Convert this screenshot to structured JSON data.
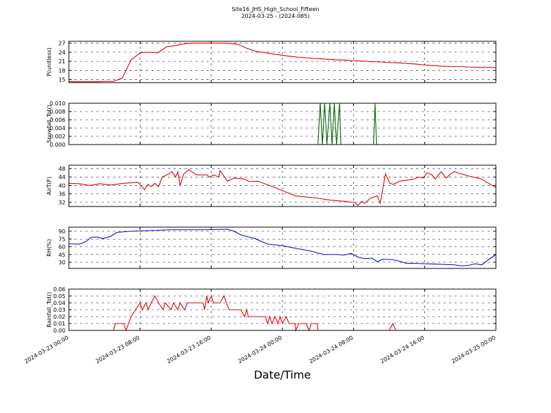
{
  "title": "Site16_JHS_High_School_Fifteen",
  "subtitle": "2024-03-25 - (2024-085)",
  "xlabel": "Date/Time",
  "chart_data": [
    {
      "type": "line",
      "ylabel": "P(unitless)",
      "color": "#e00000",
      "grid": true,
      "xlim": [
        "2024-03-23 00:00",
        "2024-03-25 00:00"
      ],
      "xticks": [
        "2024-03-23 00:00",
        "2024-03-23 08:00",
        "2024-03-23 16:00",
        "2024-03-24 00:00",
        "2024-03-24 08:00",
        "2024-03-24 16:00",
        "2024-03-25 00:00"
      ],
      "ylim": [
        14,
        27.6
      ],
      "yticks": [
        15,
        18,
        21,
        24,
        27
      ],
      "x": [
        "2024-03-23 00:00",
        "2024-03-23 01:00",
        "2024-03-23 02:00",
        "2024-03-23 03:00",
        "2024-03-23 04:00",
        "2024-03-23 05:00",
        "2024-03-23 06:00",
        "2024-03-23 07:00",
        "2024-03-23 08:00",
        "2024-03-23 09:00",
        "2024-03-23 10:00",
        "2024-03-23 11:00",
        "2024-03-23 12:00",
        "2024-03-23 13:00",
        "2024-03-23 14:00",
        "2024-03-23 15:00",
        "2024-03-23 16:00",
        "2024-03-23 17:00",
        "2024-03-23 18:00",
        "2024-03-23 19:00",
        "2024-03-23 20:00",
        "2024-03-23 21:00",
        "2024-03-23 22:00",
        "2024-03-23 23:00",
        "2024-03-24 00:00",
        "2024-03-24 01:00",
        "2024-03-24 02:00",
        "2024-03-24 03:00",
        "2024-03-24 04:00",
        "2024-03-24 05:00",
        "2024-03-24 06:00",
        "2024-03-24 07:00",
        "2024-03-24 08:00",
        "2024-03-24 09:00",
        "2024-03-24 10:00",
        "2024-03-24 11:00",
        "2024-03-24 12:00",
        "2024-03-24 13:00",
        "2024-03-24 14:00",
        "2024-03-24 15:00",
        "2024-03-24 16:00",
        "2024-03-24 17:00",
        "2024-03-24 18:00",
        "2024-03-24 19:00",
        "2024-03-24 20:00",
        "2024-03-24 21:00",
        "2024-03-24 22:00",
        "2024-03-24 23:00",
        "2024-03-25 00:00"
      ],
      "values": [
        14.3,
        14.3,
        14.3,
        14.3,
        14.4,
        14.4,
        15.5,
        21.5,
        23.8,
        24,
        23.8,
        25.8,
        26.2,
        26.8,
        27,
        27,
        27,
        27,
        27,
        26.6,
        25.3,
        24.3,
        23.9,
        23.4,
        23,
        22.6,
        22.3,
        22.1,
        21.9,
        21.7,
        21.5,
        21.4,
        21.2,
        21.1,
        20.9,
        20.8,
        20.6,
        20.5,
        20.3,
        20.1,
        19.8,
        19.6,
        19.4,
        19.3,
        19.3,
        19.1,
        19,
        19,
        18.9
      ]
    },
    {
      "type": "line",
      "ylabel": "Snowfall_Tot()",
      "color": "#006400",
      "grid": true,
      "xlim": [
        "2024-03-23 00:00",
        "2024-03-25 00:00"
      ],
      "xticks": [
        "2024-03-23 00:00",
        "2024-03-23 08:00",
        "2024-03-23 16:00",
        "2024-03-24 00:00",
        "2024-03-24 08:00",
        "2024-03-24 16:00",
        "2024-03-25 00:00"
      ],
      "ylim": [
        0,
        0.01
      ],
      "yticks": [
        {
          "value": 0,
          "label": "0.000"
        },
        0.002,
        0.004,
        0.006,
        0.008,
        {
          "value": 0.01,
          "label": "0.010"
        }
      ],
      "x": [
        "2024-03-23 00:00",
        "2024-03-24 04:00",
        "2024-03-24 04:15",
        "2024-03-24 04:30",
        "2024-03-24 04:45",
        "2024-03-24 05:00",
        "2024-03-24 05:20",
        "2024-03-24 05:35",
        "2024-03-24 05:50",
        "2024-03-24 06:05",
        "2024-03-24 06:25",
        "2024-03-24 06:35",
        "2024-03-24 10:15",
        "2024-03-24 10:25",
        "2024-03-24 10:35",
        "2024-03-25 00:00"
      ],
      "values": [
        0,
        0,
        0.01,
        0,
        0.01,
        0,
        0.01,
        0,
        0.01,
        0,
        0.01,
        0,
        0,
        0.01,
        0,
        0
      ]
    },
    {
      "type": "line",
      "ylabel": "AirT(F)",
      "color": "#e00000",
      "grid": true,
      "xlim": [
        "2024-03-23 00:00",
        "2024-03-25 00:00"
      ],
      "xticks": [
        "2024-03-23 00:00",
        "2024-03-23 08:00",
        "2024-03-23 16:00",
        "2024-03-24 00:00",
        "2024-03-24 08:00",
        "2024-03-24 16:00",
        "2024-03-25 00:00"
      ],
      "ylim": [
        30,
        49.6
      ],
      "yticks": [
        32,
        36,
        40,
        44,
        48
      ],
      "x": [
        "2024-03-23 00:00",
        "2024-03-23 01:10",
        "2024-03-23 02:20",
        "2024-03-23 03:30",
        "2024-03-23 04:40",
        "2024-03-23 06:10",
        "2024-03-23 07:45",
        "2024-03-23 08:30",
        "2024-03-23 08:55",
        "2024-03-23 09:15",
        "2024-03-23 09:40",
        "2024-03-23 10:05",
        "2024-03-23 10:30",
        "2024-03-23 11:15",
        "2024-03-23 11:35",
        "2024-03-23 12:00",
        "2024-03-23 12:15",
        "2024-03-23 12:30",
        "2024-03-23 12:55",
        "2024-03-23 13:30",
        "2024-03-23 14:20",
        "2024-03-23 15:30",
        "2024-03-23 15:50",
        "2024-03-23 16:15",
        "2024-03-23 16:50",
        "2024-03-23 17:00",
        "2024-03-23 17:50",
        "2024-03-23 18:35",
        "2024-03-23 19:45",
        "2024-03-23 20:15",
        "2024-03-23 21:15",
        "2024-03-23 22:50",
        "2024-03-24 00:00",
        "2024-03-24 01:30",
        "2024-03-24 03:55",
        "2024-03-24 05:25",
        "2024-03-24 06:55",
        "2024-03-24 07:45",
        "2024-03-24 08:05",
        "2024-03-24 08:30",
        "2024-03-24 08:55",
        "2024-03-24 09:15",
        "2024-03-24 09:55",
        "2024-03-24 10:40",
        "2024-03-24 11:00",
        "2024-03-24 11:35",
        "2024-03-24 12:05",
        "2024-03-24 12:30",
        "2024-03-24 13:10",
        "2024-03-24 14:45",
        "2024-03-24 15:20",
        "2024-03-24 15:50",
        "2024-03-24 16:15",
        "2024-03-24 16:50",
        "2024-03-24 17:10",
        "2024-03-24 17:50",
        "2024-03-24 18:25",
        "2024-03-24 18:55",
        "2024-03-24 19:20",
        "2024-03-24 20:55",
        "2024-03-24 22:25",
        "2024-03-24 23:10",
        "2024-03-25 00:00"
      ],
      "values": [
        41,
        40.8,
        40,
        40.8,
        40.2,
        41,
        41.5,
        38,
        40.5,
        39.5,
        41,
        39.5,
        44,
        45.5,
        46.5,
        44,
        46.5,
        40,
        45.5,
        47.5,
        45,
        45,
        44,
        45,
        44,
        47,
        42,
        43.5,
        43,
        41.8,
        42,
        39.5,
        37.5,
        35,
        34,
        33,
        32.5,
        32,
        32,
        30.5,
        32.5,
        31.5,
        34,
        35,
        31.5,
        45.5,
        41,
        40.5,
        42,
        43,
        44,
        43.5,
        46,
        45,
        43,
        46.5,
        43.5,
        45.5,
        46.5,
        44.5,
        43,
        41,
        39
      ]
    },
    {
      "type": "line",
      "ylabel": "RH(%)",
      "color": "#0000e0",
      "grid": true,
      "xlim": [
        "2024-03-23 00:00",
        "2024-03-25 00:00"
      ],
      "xticks": [
        "2024-03-23 00:00",
        "2024-03-23 08:00",
        "2024-03-23 16:00",
        "2024-03-24 00:00",
        "2024-03-24 08:00",
        "2024-03-24 16:00",
        "2024-03-25 00:00"
      ],
      "ylim": [
        18,
        98
      ],
      "yticks": [
        30,
        45,
        60,
        75,
        90
      ],
      "x": [
        "2024-03-23 00:00",
        "2024-03-23 01:10",
        "2024-03-23 01:55",
        "2024-03-23 02:30",
        "2024-03-23 03:05",
        "2024-03-23 03:50",
        "2024-03-23 04:40",
        "2024-03-23 05:25",
        "2024-03-23 06:55",
        "2024-03-23 08:30",
        "2024-03-23 10:05",
        "2024-03-23 11:35",
        "2024-03-23 15:30",
        "2024-03-23 17:50",
        "2024-03-23 18:35",
        "2024-03-23 19:20",
        "2024-03-23 20:10",
        "2024-03-23 20:55",
        "2024-03-23 21:40",
        "2024-03-23 22:25",
        "2024-03-24 00:00",
        "2024-03-24 01:30",
        "2024-03-24 03:05",
        "2024-03-24 04:40",
        "2024-03-24 06:10",
        "2024-03-24 06:55",
        "2024-03-24 07:45",
        "2024-03-24 08:30",
        "2024-03-24 09:15",
        "2024-03-24 10:05",
        "2024-03-24 10:40",
        "2024-03-24 11:15",
        "2024-03-24 12:25",
        "2024-03-24 13:10",
        "2024-03-24 13:55",
        "2024-03-24 14:45",
        "2024-03-24 16:15",
        "2024-03-24 17:50",
        "2024-03-24 19:20",
        "2024-03-24 20:05",
        "2024-03-24 20:55",
        "2024-03-24 21:40",
        "2024-03-24 22:25",
        "2024-03-24 23:10",
        "2024-03-25 00:00"
      ],
      "values": [
        66,
        65,
        70,
        78,
        79,
        76,
        80,
        88,
        90,
        91,
        92,
        93,
        93,
        94,
        90,
        83,
        79,
        76,
        70,
        65,
        62,
        57,
        52,
        45,
        45,
        44,
        47,
        40,
        37,
        38,
        31,
        36,
        35,
        32,
        28,
        28,
        27,
        26,
        25,
        23,
        24,
        27,
        25,
        35,
        45
      ]
    },
    {
      "type": "line",
      "ylabel": "Rainfall_Tot()",
      "color": "#e00000",
      "grid": true,
      "xlim": [
        "2024-03-23 00:00",
        "2024-03-25 00:00"
      ],
      "xticks": [
        "2024-03-23 00:00",
        "2024-03-23 08:00",
        "2024-03-23 16:00",
        "2024-03-24 00:00",
        "2024-03-24 08:00",
        "2024-03-24 16:00",
        "2024-03-25 00:00"
      ],
      "ylim": [
        0,
        0.06
      ],
      "yticks": [
        {
          "value": 0,
          "label": "0.00"
        },
        0.01,
        0.02,
        0.03,
        0.04,
        0.05,
        0.06
      ],
      "x": [
        "2024-03-23 00:00",
        "2024-03-23 05:00",
        "2024-03-23 05:15",
        "2024-03-23 06:10",
        "2024-03-23 06:25",
        "2024-03-23 07:00",
        "2024-03-23 07:30",
        "2024-03-23 08:00",
        "2024-03-23 08:15",
        "2024-03-23 08:40",
        "2024-03-23 08:55",
        "2024-03-23 09:15",
        "2024-03-23 09:40",
        "2024-03-23 10:05",
        "2024-03-23 10:35",
        "2024-03-23 10:50",
        "2024-03-23 11:30",
        "2024-03-23 11:45",
        "2024-03-23 12:15",
        "2024-03-23 12:30",
        "2024-03-23 13:00",
        "2024-03-23 13:20",
        "2024-03-23 15:05",
        "2024-03-23 15:15",
        "2024-03-23 15:30",
        "2024-03-23 15:40",
        "2024-03-23 16:00",
        "2024-03-23 16:15",
        "2024-03-23 17:00",
        "2024-03-23 17:25",
        "2024-03-23 18:00",
        "2024-03-23 19:20",
        "2024-03-23 19:45",
        "2024-03-23 20:00",
        "2024-03-23 20:10",
        "2024-03-23 22:05",
        "2024-03-23 22:20",
        "2024-03-23 22:35",
        "2024-03-23 22:50",
        "2024-03-23 23:10",
        "2024-03-23 23:30",
        "2024-03-23 23:45",
        "2024-03-24 00:00",
        "2024-03-24 00:25",
        "2024-03-24 00:45",
        "2024-03-24 01:25",
        "2024-03-24 01:30",
        "2024-03-24 01:50",
        "2024-03-24 02:40",
        "2024-03-24 03:00",
        "2024-03-24 03:15",
        "2024-03-24 03:55",
        "2024-03-24 04:00",
        "2024-03-24 12:00",
        "2024-03-24 12:25",
        "2024-03-24 12:45",
        "2024-03-25 00:00"
      ],
      "values": [
        0,
        0,
        0.01,
        0.01,
        0,
        0.02,
        0.03,
        0.04,
        0.03,
        0.04,
        0.03,
        0.04,
        0.05,
        0.04,
        0.03,
        0.04,
        0.03,
        0.04,
        0.03,
        0.04,
        0.03,
        0.04,
        0.04,
        0.03,
        0.05,
        0.04,
        0.05,
        0.04,
        0.04,
        0.05,
        0.03,
        0.03,
        0.02,
        0.03,
        0.02,
        0.02,
        0.01,
        0.02,
        0.01,
        0.02,
        0.01,
        0.02,
        0.01,
        0.02,
        0.01,
        0.01,
        0,
        0.01,
        0.01,
        0,
        0.01,
        0.01,
        0,
        0,
        0.01,
        0,
        0
      ]
    }
  ]
}
